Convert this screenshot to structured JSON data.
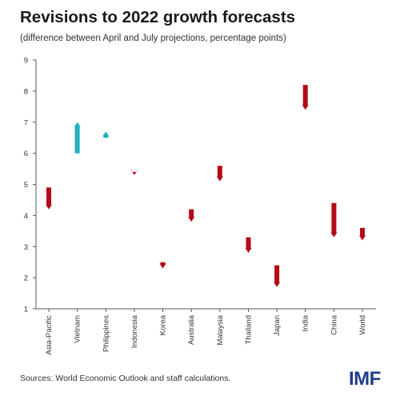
{
  "chart_data": {
    "type": "range-arrow",
    "title": "Revisions to 2022 growth forecasts",
    "subtitle": "(difference between April and July projections, percentage points)",
    "categories": [
      "Asia-Pacific",
      "Vietnam",
      "Philippines",
      "Indonesia",
      "Korea",
      "Australia",
      "Malaysia",
      "Thailand",
      "Japan",
      "India",
      "China",
      "World"
    ],
    "series": [
      {
        "april": [
          4.9,
          6.0,
          6.5,
          5.4,
          2.5,
          4.2,
          5.6,
          3.3,
          2.4,
          8.2,
          4.4,
          3.6
        ],
        "july": [
          4.2,
          7.0,
          6.7,
          5.3,
          2.3,
          3.8,
          5.1,
          2.8,
          1.7,
          7.4,
          3.3,
          3.2
        ]
      }
    ],
    "ylim": [
      1,
      9
    ],
    "yticks": [
      1,
      2,
      3,
      4,
      5,
      6,
      7,
      8,
      9
    ],
    "colors": {
      "down": "#b50a16",
      "up": "#1fb0bf"
    },
    "grid": false
  },
  "source": "Sources: World Economic Outlook and staff calculations.",
  "logo": "IMF"
}
